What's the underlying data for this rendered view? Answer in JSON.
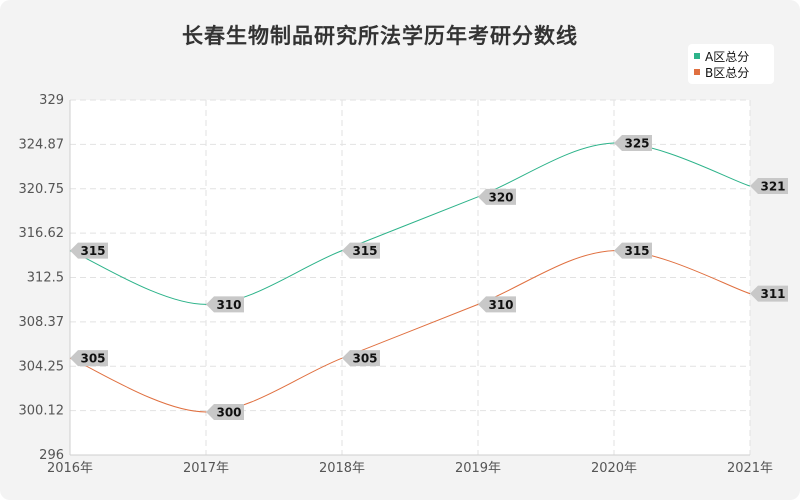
{
  "chart_data": {
    "type": "line",
    "title": "长春生物制品研究所法学历年考研分数线",
    "xlabel": "",
    "ylabel": "",
    "categories": [
      "2016年",
      "2017年",
      "2018年",
      "2019年",
      "2020年",
      "2021年"
    ],
    "yticks": [
      "296",
      "300.12",
      "304.25",
      "308.37",
      "312.5",
      "316.62",
      "320.75",
      "324.87",
      "329"
    ],
    "ylim": [
      296,
      329
    ],
    "grid": true,
    "legend_position": "top-right",
    "series": [
      {
        "name": "A区总分",
        "color": "#2db38a",
        "values": [
          315,
          310,
          315,
          320,
          325,
          321
        ]
      },
      {
        "name": "B区总分",
        "color": "#e07040",
        "values": [
          305,
          300,
          305,
          310,
          315,
          311
        ]
      }
    ]
  }
}
